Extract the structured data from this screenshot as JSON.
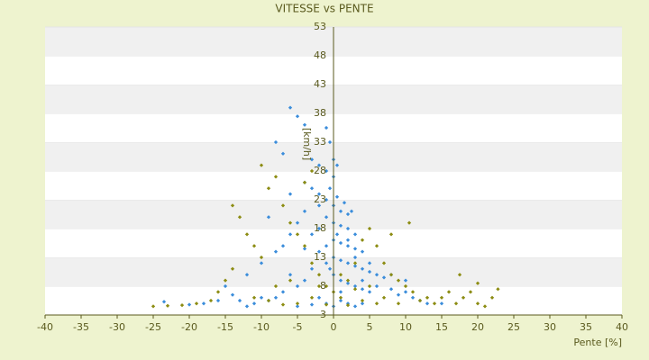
{
  "chart_data": {
    "type": "scatter",
    "title": "VITESSE vs PENTE",
    "xlabel": "Pente [%]",
    "ylabel": "[km/h]",
    "xlim": [
      -40,
      40
    ],
    "xticks": [
      -40,
      -35,
      -30,
      -25,
      -20,
      -15,
      -10,
      -5,
      0,
      5,
      10,
      15,
      20,
      25,
      30,
      35,
      40
    ],
    "ylim": [
      3,
      53
    ],
    "yticks": [
      3,
      8,
      13,
      18,
      23,
      28,
      33,
      38,
      43,
      48,
      53
    ],
    "grid": true,
    "series": [
      {
        "color": "#3b8ddb",
        "x": [
          -6,
          -5,
          -4,
          -1,
          -0.5,
          -8,
          -7,
          -3,
          -2,
          -1,
          0,
          -4,
          -3,
          -2,
          -1,
          0,
          1,
          2,
          -1,
          0,
          1,
          2,
          3,
          -2,
          -3,
          0,
          1,
          2,
          3,
          4,
          -1,
          -2,
          0,
          1,
          2,
          3,
          4,
          5,
          6,
          7,
          -1,
          -3,
          0,
          1,
          2,
          3,
          4,
          5,
          6,
          8,
          9,
          10,
          11,
          12,
          13,
          15,
          -4,
          -5,
          -6,
          -7,
          -8,
          -9,
          -10,
          -11,
          -12,
          -13,
          -14,
          -16,
          -18,
          -20,
          -23.5,
          -2,
          -1,
          0,
          1,
          2,
          3,
          4,
          -3,
          -5,
          -2,
          -0.5,
          0.5,
          1.5,
          2.5,
          -4,
          -5,
          -6,
          -7,
          -8,
          -10,
          -12,
          -15,
          -9,
          -6,
          2,
          3,
          0.5,
          -0.5,
          1,
          4,
          5,
          8,
          10,
          -4,
          0,
          0.5
        ],
        "values": [
          39,
          37.5,
          36,
          35.5,
          33,
          33,
          31,
          30,
          29,
          28,
          27,
          26,
          25,
          24,
          23,
          22,
          21,
          20.5,
          20,
          19,
          18.5,
          18,
          17,
          18,
          17,
          16,
          15.5,
          15,
          14.5,
          14,
          15,
          14,
          13,
          12.5,
          12,
          11.5,
          11,
          10.5,
          10,
          9.5,
          12,
          11,
          10,
          9,
          8.5,
          8,
          7.5,
          7,
          8,
          7.5,
          6.5,
          7,
          6,
          5.5,
          5,
          5,
          9,
          8,
          10,
          7,
          6,
          5.5,
          6,
          5,
          4.5,
          5.5,
          6.5,
          5.5,
          5,
          4.8,
          5.3,
          6,
          5,
          4.5,
          5.5,
          5,
          4.5,
          5,
          4.8,
          4.5,
          22,
          25,
          23.5,
          22.5,
          21,
          21,
          19,
          17,
          15,
          14,
          12,
          10,
          8,
          20,
          24,
          16,
          13,
          17,
          11,
          7,
          9,
          12,
          10,
          9,
          14.5,
          30,
          29
        ]
      },
      {
        "color": "#8c8c12",
        "x": [
          -25,
          -23,
          -21,
          -19,
          -17,
          -16,
          -15,
          -14,
          -14,
          -13,
          -12,
          -11,
          -10,
          -10,
          -9,
          -8,
          -7,
          -6,
          -5,
          -4,
          -3,
          -2,
          -1,
          0,
          1,
          2,
          3,
          4,
          5,
          6,
          7,
          8,
          9,
          10,
          11,
          12,
          13,
          14,
          15,
          16,
          17,
          18,
          19,
          20,
          21,
          22,
          22.8,
          20,
          17.5,
          10.5,
          8,
          -5,
          -7,
          -9,
          -11,
          -3,
          -1,
          2,
          4,
          6,
          3,
          -6,
          -8,
          -4,
          -3,
          -2,
          1,
          5,
          7,
          9
        ],
        "values": [
          4.5,
          4.6,
          4.7,
          5,
          5.5,
          7,
          9,
          11,
          22,
          20,
          17,
          15,
          13,
          29,
          25,
          27,
          22,
          19,
          17,
          15,
          12,
          10,
          8,
          7,
          6,
          9,
          12,
          16,
          18,
          15,
          12,
          10,
          9,
          8,
          7,
          5.5,
          6,
          5,
          6,
          7,
          5,
          6,
          7,
          5,
          4.5,
          6,
          7.5,
          8.5,
          10,
          19,
          17,
          5,
          4.8,
          5.5,
          6,
          6,
          4.8,
          4.7,
          5.5,
          5,
          7.5,
          9,
          8,
          26,
          28,
          8,
          10,
          8,
          6,
          5
        ]
      }
    ]
  }
}
